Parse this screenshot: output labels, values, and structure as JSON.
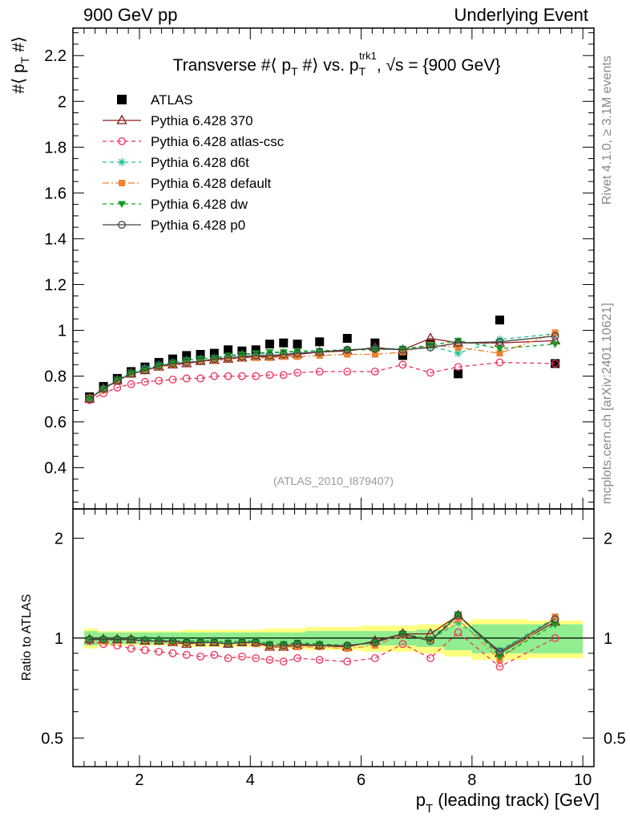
{
  "header": {
    "left": "900 GeV pp",
    "right": "Underlying Event"
  },
  "side_labels": {
    "rivet": "Rivet 4.1.0, ≥ 3.1M events",
    "mcplots": "mcplots.cern.ch [arXiv:2401.10621]"
  },
  "colors": {
    "ATLAS": "#000000",
    "Pythia 6.428 370": "#8b1a1a",
    "Pythia 6.428 atlas-csc": "#f0305a",
    "Pythia 6.428 d6t": "#20c090",
    "Pythia 6.428 default": "#f08030",
    "Pythia 6.428 dw": "#10a020",
    "Pythia 6.428 p0": "#404040",
    "band_inner": "#90ee90",
    "band_outer": "#ffff80"
  },
  "chart_data": [
    {
      "type": "scatter",
      "title_parts": {
        "pre": "Transverse #⟨ p",
        "sub1": "T",
        "mid": " #⟩ vs. p",
        "sup2": "trk1",
        "sub2": "T",
        "post": ", √s = {900 GeV}"
      },
      "ylabel_parts": {
        "pre": "#⟨ p",
        "sub": "T",
        "post": " #⟩"
      },
      "xlim": [
        0.8,
        10.2
      ],
      "ylim": [
        0.22,
        2.32
      ],
      "yticks": [
        0.4,
        0.6,
        0.8,
        1,
        1.2,
        1.4,
        1.6,
        1.8,
        2,
        2.2
      ],
      "ytick_labels": [
        "0.4",
        "0.6",
        "0.8",
        "1",
        "1.2",
        "1.4",
        "1.6",
        "1.8",
        "2",
        "2.2"
      ],
      "analysis_label": "(ATLAS_2010_I879407)",
      "x": [
        1.1,
        1.35,
        1.6,
        1.85,
        2.1,
        2.35,
        2.6,
        2.85,
        3.1,
        3.35,
        3.6,
        3.85,
        4.1,
        4.35,
        4.6,
        4.85,
        5.25,
        5.75,
        6.25,
        6.75,
        7.25,
        7.75,
        8.5,
        9.5
      ],
      "series": [
        {
          "name": "ATLAS",
          "marker": "square",
          "line": "none",
          "values": [
            0.71,
            0.755,
            0.79,
            0.82,
            0.84,
            0.86,
            0.875,
            0.89,
            0.895,
            0.9,
            0.915,
            0.91,
            0.915,
            0.94,
            0.945,
            0.94,
            0.95,
            0.965,
            0.945,
            0.89,
            0.94,
            0.81,
            1.045,
            0.855
          ]
        },
        {
          "name": "Pythia 6.428 370",
          "marker": "triangle-open",
          "line": "solid",
          "values": [
            0.7,
            0.745,
            0.78,
            0.81,
            0.825,
            0.84,
            0.85,
            0.855,
            0.865,
            0.87,
            0.875,
            0.88,
            0.885,
            0.885,
            0.89,
            0.895,
            0.905,
            0.91,
            0.925,
            0.915,
            0.965,
            0.945,
            0.945,
            0.955
          ]
        },
        {
          "name": "Pythia 6.428 atlas-csc",
          "marker": "circle-open",
          "line": "dashed",
          "values": [
            0.695,
            0.725,
            0.75,
            0.765,
            0.775,
            0.78,
            0.785,
            0.79,
            0.79,
            0.8,
            0.8,
            0.8,
            0.8,
            0.805,
            0.805,
            0.815,
            0.82,
            0.82,
            0.82,
            0.85,
            0.815,
            0.84,
            0.86,
            0.855
          ]
        },
        {
          "name": "Pythia 6.428 d6t",
          "marker": "star",
          "line": "dashed",
          "values": [
            0.705,
            0.745,
            0.785,
            0.815,
            0.835,
            0.85,
            0.86,
            0.87,
            0.875,
            0.88,
            0.885,
            0.895,
            0.895,
            0.9,
            0.905,
            0.905,
            0.91,
            0.915,
            0.92,
            0.92,
            0.93,
            0.9,
            0.96,
            0.985
          ]
        },
        {
          "name": "Pythia 6.428 default",
          "marker": "square-small",
          "line": "dashdot",
          "values": [
            0.705,
            0.74,
            0.78,
            0.81,
            0.825,
            0.84,
            0.85,
            0.86,
            0.865,
            0.87,
            0.875,
            0.88,
            0.88,
            0.88,
            0.885,
            0.885,
            0.89,
            0.895,
            0.895,
            0.905,
            0.935,
            0.925,
            0.9,
            0.99
          ]
        },
        {
          "name": "Pythia 6.428 dw",
          "marker": "triangle-down",
          "line": "dashed",
          "values": [
            0.7,
            0.745,
            0.785,
            0.815,
            0.83,
            0.845,
            0.86,
            0.87,
            0.875,
            0.88,
            0.89,
            0.895,
            0.9,
            0.905,
            0.905,
            0.91,
            0.91,
            0.915,
            0.915,
            0.92,
            0.935,
            0.955,
            0.92,
            0.94
          ]
        },
        {
          "name": "Pythia 6.428 p0",
          "marker": "circle-open",
          "line": "solid",
          "values": [
            0.7,
            0.745,
            0.78,
            0.81,
            0.825,
            0.845,
            0.855,
            0.86,
            0.865,
            0.875,
            0.88,
            0.885,
            0.89,
            0.89,
            0.895,
            0.9,
            0.905,
            0.915,
            0.92,
            0.915,
            0.925,
            0.945,
            0.95,
            0.975
          ]
        }
      ]
    },
    {
      "type": "scatter",
      "ylabel": "Ratio to ATLAS",
      "xlabel_parts": {
        "pre": "p",
        "sub": "T",
        "post": " (leading track) [GeV]"
      },
      "xlim": [
        0.8,
        10.2
      ],
      "ylim": [
        0.41,
        2.45
      ],
      "ylog": true,
      "yticks": [
        0.5,
        1,
        2
      ],
      "ytick_labels": [
        "0.5",
        "1",
        "2"
      ],
      "xticks": [
        2,
        4,
        6,
        8,
        10
      ],
      "xtick_labels": [
        "2",
        "4",
        "6",
        "8",
        "10"
      ],
      "x": [
        1.1,
        1.35,
        1.6,
        1.85,
        2.1,
        2.35,
        2.6,
        2.85,
        3.1,
        3.35,
        3.6,
        3.85,
        4.1,
        4.35,
        4.6,
        4.85,
        5.25,
        5.75,
        6.25,
        6.75,
        7.25,
        7.75,
        8.5,
        9.5
      ],
      "bin_edges": [
        1.0,
        1.25,
        1.5,
        1.75,
        2.0,
        2.25,
        2.5,
        2.75,
        3.0,
        3.25,
        3.5,
        3.75,
        4.0,
        4.25,
        4.5,
        4.75,
        5.0,
        5.5,
        6.0,
        6.5,
        7.0,
        7.5,
        8.0,
        9.0,
        10.0
      ],
      "band_inner": [
        0.05,
        0.04,
        0.04,
        0.04,
        0.04,
        0.04,
        0.04,
        0.04,
        0.04,
        0.04,
        0.04,
        0.04,
        0.04,
        0.04,
        0.04,
        0.04,
        0.05,
        0.05,
        0.05,
        0.05,
        0.06,
        0.08,
        0.1,
        0.1
      ],
      "band_outer": [
        0.07,
        0.05,
        0.05,
        0.05,
        0.05,
        0.05,
        0.05,
        0.06,
        0.06,
        0.06,
        0.06,
        0.06,
        0.06,
        0.07,
        0.07,
        0.07,
        0.08,
        0.08,
        0.09,
        0.09,
        0.1,
        0.12,
        0.14,
        0.13
      ],
      "series": [
        {
          "name": "Pythia 6.428 370",
          "values": [
            0.99,
            0.99,
            0.99,
            0.99,
            0.98,
            0.98,
            0.97,
            0.96,
            0.97,
            0.97,
            0.96,
            0.97,
            0.97,
            0.94,
            0.94,
            0.95,
            0.95,
            0.94,
            0.98,
            1.03,
            1.03,
            1.17,
            0.9,
            1.12
          ]
        },
        {
          "name": "Pythia 6.428 atlas-csc",
          "values": [
            0.98,
            0.96,
            0.95,
            0.93,
            0.92,
            0.91,
            0.9,
            0.89,
            0.88,
            0.89,
            0.87,
            0.88,
            0.87,
            0.86,
            0.85,
            0.87,
            0.86,
            0.85,
            0.87,
            0.96,
            0.87,
            1.04,
            0.82,
            1.0
          ]
        },
        {
          "name": "Pythia 6.428 d6t",
          "values": [
            0.99,
            0.99,
            0.99,
            0.99,
            0.99,
            0.99,
            0.98,
            0.98,
            0.98,
            0.98,
            0.97,
            0.98,
            0.98,
            0.96,
            0.96,
            0.96,
            0.96,
            0.95,
            0.97,
            1.03,
            0.99,
            1.11,
            0.92,
            1.15
          ]
        },
        {
          "name": "Pythia 6.428 default",
          "values": [
            0.99,
            0.98,
            0.99,
            0.99,
            0.98,
            0.98,
            0.97,
            0.97,
            0.97,
            0.97,
            0.96,
            0.97,
            0.96,
            0.94,
            0.94,
            0.94,
            0.94,
            0.93,
            0.95,
            1.02,
            0.99,
            1.14,
            0.86,
            1.16
          ]
        },
        {
          "name": "Pythia 6.428 dw",
          "values": [
            0.99,
            0.99,
            0.99,
            0.99,
            0.99,
            0.98,
            0.98,
            0.98,
            0.98,
            0.98,
            0.97,
            0.98,
            0.98,
            0.96,
            0.96,
            0.97,
            0.96,
            0.95,
            0.97,
            1.03,
            0.99,
            1.18,
            0.88,
            1.1
          ]
        },
        {
          "name": "Pythia 6.428 p0",
          "values": [
            0.99,
            0.99,
            0.99,
            0.99,
            0.98,
            0.98,
            0.98,
            0.97,
            0.97,
            0.97,
            0.96,
            0.97,
            0.97,
            0.95,
            0.95,
            0.96,
            0.95,
            0.95,
            0.97,
            1.03,
            0.98,
            1.17,
            0.91,
            1.14
          ]
        }
      ]
    }
  ]
}
